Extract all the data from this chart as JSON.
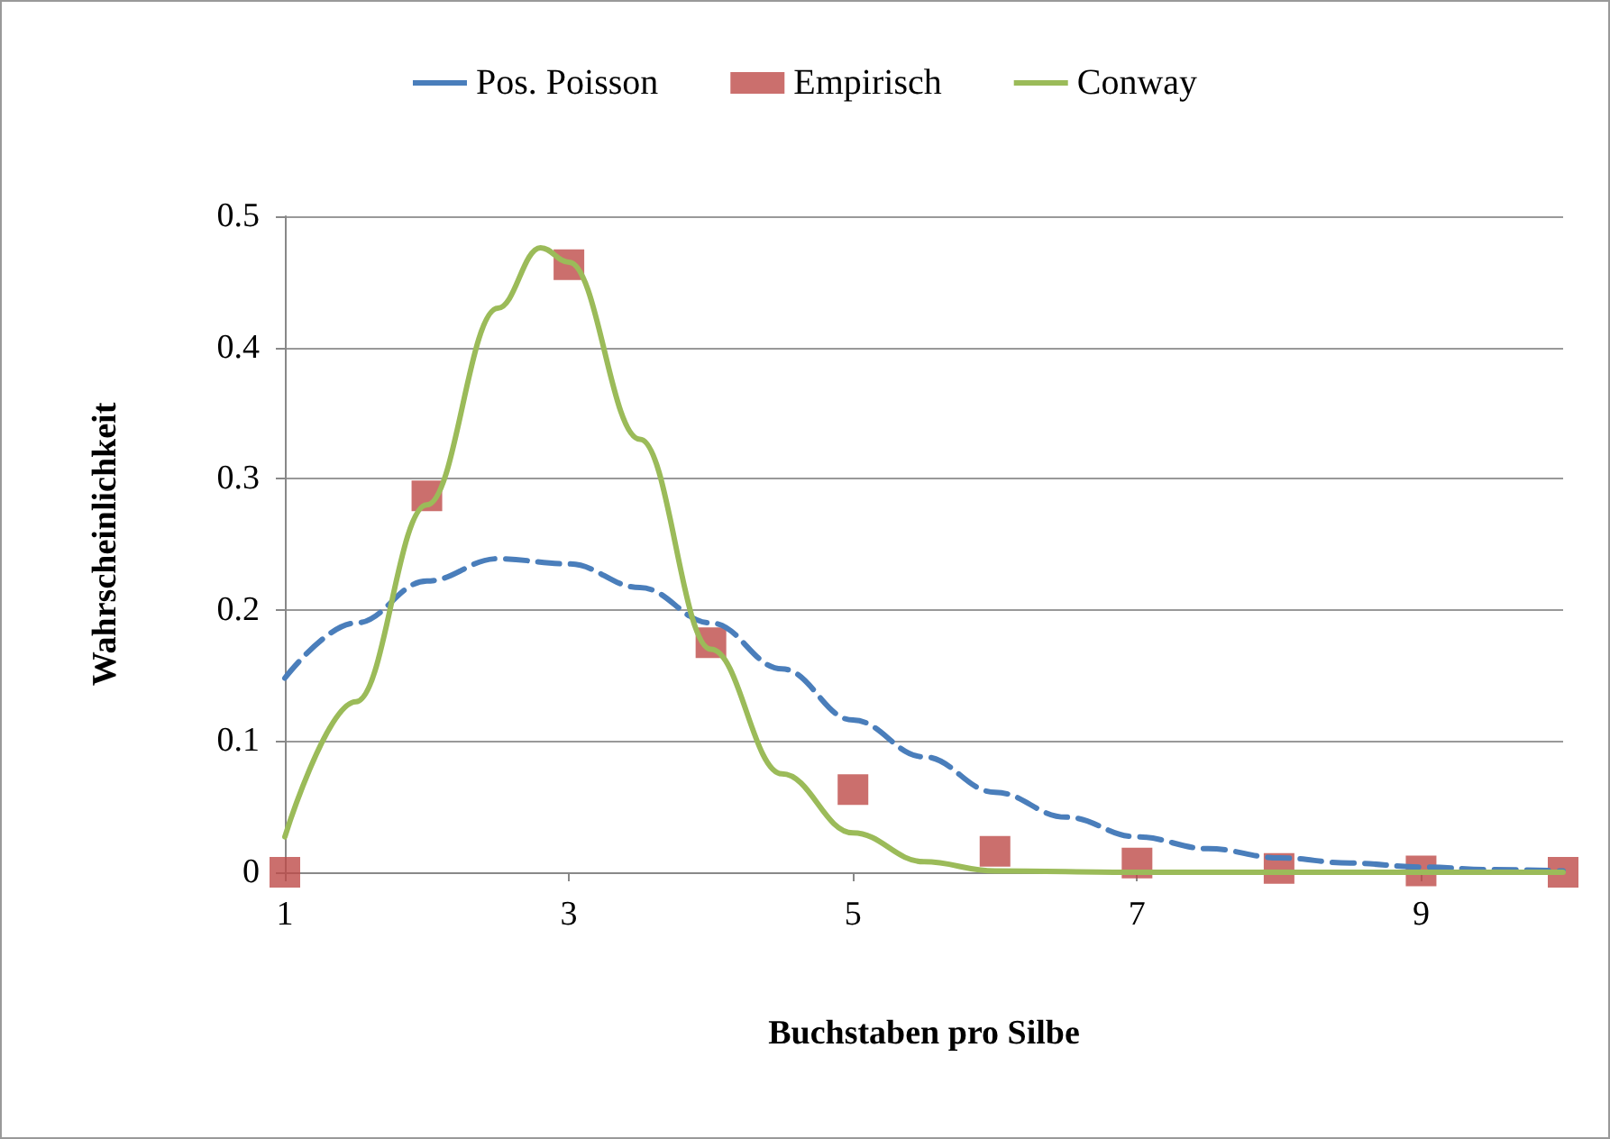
{
  "chart_data": {
    "type": "line",
    "xlabel": "Buchstaben pro Silbe",
    "ylabel": "Wahrscheinlichkeit",
    "xlim": [
      1,
      10
    ],
    "xticks": [
      1,
      3,
      5,
      7,
      9
    ],
    "ylim": [
      0,
      0.5
    ],
    "yticks": [
      0,
      0.1,
      0.2,
      0.3,
      0.4,
      0.5
    ],
    "grid": "y",
    "legend": "top",
    "series": [
      {
        "name": "Pos. Poisson",
        "color": "#4a7ebb",
        "line_style": "dashed",
        "marker": "none",
        "x": [
          1,
          1.5,
          2,
          2.5,
          3,
          3.5,
          4,
          4.5,
          5,
          5.5,
          6,
          6.5,
          7,
          7.5,
          8,
          8.5,
          9,
          9.5,
          10
        ],
        "values": [
          0.148,
          0.19,
          0.222,
          0.239,
          0.235,
          0.217,
          0.19,
          0.155,
          0.116,
          0.088,
          0.061,
          0.042,
          0.027,
          0.018,
          0.011,
          0.007,
          0.004,
          0.002,
          0.001
        ]
      },
      {
        "name": "Empirisch",
        "type": "scatter",
        "color": "#be4b48",
        "marker": "square",
        "x": [
          1,
          2,
          3,
          4,
          5,
          6,
          7,
          8,
          9,
          10
        ],
        "values": [
          0,
          0.287,
          0.463,
          0.175,
          0.063,
          0.016,
          0.007,
          0.003,
          0.001,
          0
        ]
      },
      {
        "name": "Conway",
        "color": "#9bbb59",
        "line_style": "solid",
        "marker": "none",
        "x": [
          1,
          1.5,
          2,
          2.5,
          2.8,
          3,
          3.5,
          4,
          4.5,
          5,
          5.5,
          6,
          7,
          8,
          9,
          10
        ],
        "values": [
          0.027,
          0.13,
          0.28,
          0.43,
          0.476,
          0.465,
          0.33,
          0.17,
          0.075,
          0.03,
          0.008,
          0.001,
          0,
          0,
          0,
          0
        ]
      }
    ]
  }
}
